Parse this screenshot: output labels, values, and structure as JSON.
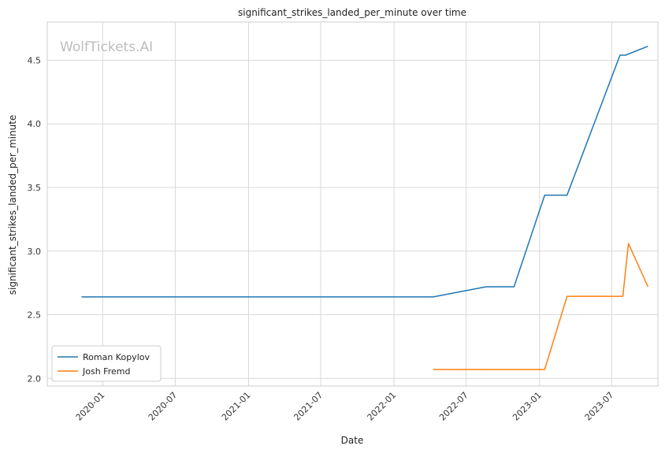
{
  "chart_data": {
    "type": "line",
    "title": "significant_strikes_landed_per_minute over time",
    "xlabel": "Date",
    "ylabel": "significant_strikes_landed_per_minute",
    "watermark": "WolfTickets.AI",
    "x_ticks": [
      "2020-01",
      "2020-07",
      "2021-01",
      "2021-07",
      "2022-01",
      "2022-07",
      "2023-01",
      "2023-07"
    ],
    "y_ticks": [
      "2.0",
      "2.5",
      "3.0",
      "3.5",
      "4.0",
      "4.5"
    ],
    "xlim": [
      "2019-08-15",
      "2023-10-25"
    ],
    "ylim": [
      1.94,
      4.8
    ],
    "grid": true,
    "legend_position": "lower-left",
    "series": [
      {
        "name": "Roman Kopylov",
        "color": "#1f77b4",
        "points": [
          [
            "2019-11-09",
            2.64
          ],
          [
            "2022-04-09",
            2.64
          ],
          [
            "2022-08-20",
            2.72
          ],
          [
            "2022-10-29",
            2.72
          ],
          [
            "2023-01-14",
            3.44
          ],
          [
            "2023-03-11",
            3.44
          ],
          [
            "2023-07-22",
            4.54
          ],
          [
            "2023-08-05",
            4.54
          ],
          [
            "2023-09-30",
            4.61
          ]
        ]
      },
      {
        "name": "Josh Fremd",
        "color": "#ff7f0e",
        "points": [
          [
            "2022-04-09",
            2.07
          ],
          [
            "2023-01-14",
            2.07
          ],
          [
            "2023-03-11",
            2.645
          ],
          [
            "2023-07-29",
            2.645
          ],
          [
            "2023-08-12",
            3.06
          ],
          [
            "2023-09-30",
            2.72
          ]
        ]
      }
    ]
  }
}
